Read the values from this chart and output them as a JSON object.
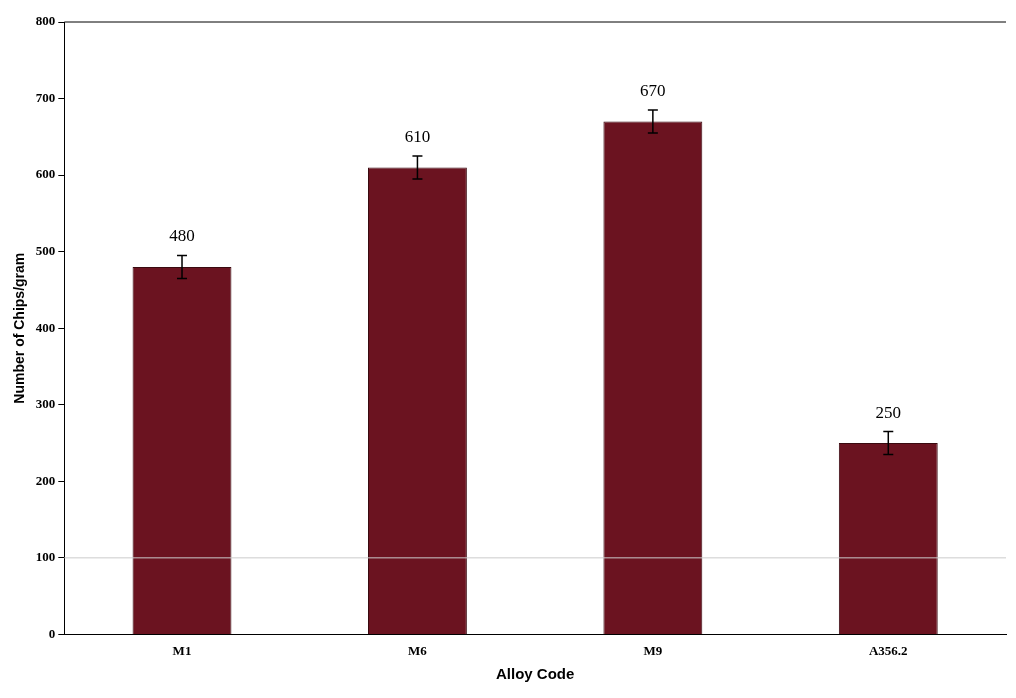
{
  "chart_data": {
    "type": "bar",
    "xlabel": "Alloy Code",
    "ylabel": "Number of Chips/gram",
    "categories": [
      "M1",
      "M6",
      "M9",
      "A356.2"
    ],
    "values": [
      480,
      610,
      670,
      250
    ],
    "errors": [
      15,
      15,
      15,
      15
    ],
    "color": "#6b1320",
    "ylim": [
      0,
      800
    ],
    "yticks": [
      0,
      100,
      200,
      300,
      400,
      500,
      600,
      700,
      800
    ],
    "grid": false,
    "ref_lines": [
      {
        "axis": "y",
        "value": 100,
        "color": "#cccccc"
      }
    ],
    "data_labels": true,
    "legend": false
  }
}
